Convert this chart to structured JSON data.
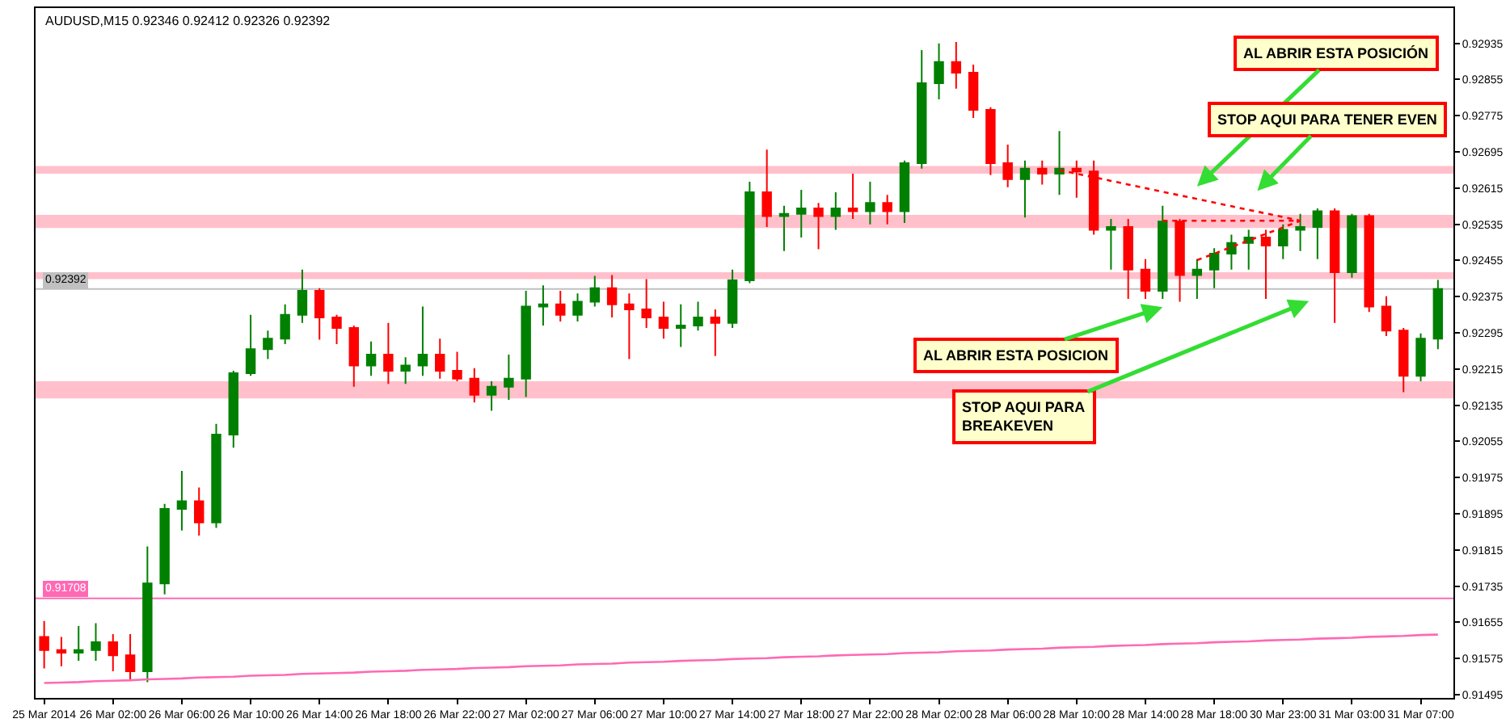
{
  "chart_data": {
    "type": "candlestick",
    "title": "AUDUSD,M15 0.92346 0.92412 0.92326 0.92392",
    "categories": [
      "25 Mar 2014",
      null,
      null,
      null,
      "26 Mar 02:00",
      null,
      null,
      null,
      "26 Mar 06:00",
      null,
      null,
      null,
      "26 Mar 10:00",
      null,
      null,
      null,
      "26 Mar 14:00",
      null,
      null,
      null,
      "26 Mar 18:00",
      null,
      null,
      null,
      "26 Mar 22:00",
      null,
      null,
      null,
      "27 Mar 02:00",
      null,
      null,
      null,
      "27 Mar 06:00",
      null,
      null,
      null,
      "27 Mar 10:00",
      null,
      null,
      null,
      "27 Mar 14:00",
      null,
      null,
      null,
      "27 Mar 18:00",
      null,
      null,
      null,
      "27 Mar 22:00",
      null,
      null,
      null,
      "28 Mar 02:00",
      null,
      null,
      null,
      "28 Mar 06:00",
      null,
      null,
      null,
      "28 Mar 10:00",
      null,
      null,
      null,
      "28 Mar 14:00",
      null,
      null,
      null,
      "28 Mar 18:00",
      null,
      null,
      null,
      "30 Mar 23:00",
      null,
      null,
      null,
      "31 Mar 03:00",
      null,
      null,
      null,
      "31 Mar 07:00",
      null
    ],
    "series": [
      {
        "type": "line",
        "color": "#ff69b4",
        "values": [
          0.91521,
          0.91522,
          0.91523,
          0.91525,
          0.91526,
          0.91527,
          0.91529,
          0.9153,
          0.91531,
          0.91533,
          0.91534,
          0.91535,
          0.91537,
          0.91538,
          0.91539,
          0.91541,
          0.91542,
          0.91543,
          0.91544,
          0.91546,
          0.91547,
          0.91548,
          0.9155,
          0.91551,
          0.91552,
          0.91554,
          0.91555,
          0.91556,
          0.91558,
          0.91559,
          0.9156,
          0.91562,
          0.91563,
          0.91564,
          0.91566,
          0.91567,
          0.91568,
          0.9157,
          0.91571,
          0.91572,
          0.91574,
          0.91575,
          0.91576,
          0.91578,
          0.91579,
          0.9158,
          0.91582,
          0.91583,
          0.91584,
          0.91585,
          0.91587,
          0.91588,
          0.91589,
          0.91591,
          0.91592,
          0.91593,
          0.91595,
          0.91596,
          0.91597,
          0.91599,
          0.916,
          0.91601,
          0.91603,
          0.91604,
          0.91605,
          0.91607,
          0.91608,
          0.91609,
          0.91611,
          0.91612,
          0.91613,
          0.91615,
          0.91616,
          0.91617,
          0.91619,
          0.9162,
          0.91621,
          0.91623,
          0.91624,
          0.91625,
          0.91627,
          0.91628
        ]
      },
      {
        "type": "line",
        "color": "#ff0000",
        "line_style": "dotted",
        "values": [
          null,
          null,
          null,
          null,
          null,
          null,
          null,
          null,
          null,
          null,
          null,
          null,
          null,
          null,
          null,
          null,
          null,
          null,
          null,
          null,
          null,
          null,
          null,
          null,
          null,
          null,
          null,
          null,
          null,
          null,
          null,
          null,
          null,
          null,
          null,
          null,
          null,
          null,
          null,
          null,
          null,
          null,
          null,
          null,
          null,
          null,
          null,
          null,
          null,
          null,
          null,
          null,
          null,
          null,
          null,
          null,
          null,
          null,
          null,
          0.92655,
          0.92647,
          0.92639,
          0.92631,
          0.92623,
          0.92615,
          0.92607,
          0.92599,
          0.92591,
          0.92583,
          0.92575,
          0.92567,
          0.92559,
          0.92551,
          0.92543,
          null,
          null,
          null,
          null,
          null,
          null,
          null,
          null
        ]
      },
      {
        "type": "line",
        "color": "#ff0000",
        "line_style": "dotted",
        "values": [
          null,
          null,
          null,
          null,
          null,
          null,
          null,
          null,
          null,
          null,
          null,
          null,
          null,
          null,
          null,
          null,
          null,
          null,
          null,
          null,
          null,
          null,
          null,
          null,
          null,
          null,
          null,
          null,
          null,
          null,
          null,
          null,
          null,
          null,
          null,
          null,
          null,
          null,
          null,
          null,
          null,
          null,
          null,
          null,
          null,
          null,
          null,
          null,
          null,
          null,
          null,
          null,
          null,
          null,
          null,
          null,
          null,
          null,
          null,
          null,
          null,
          null,
          null,
          null,
          null,
          0.92543,
          0.92543,
          0.92543,
          0.92543,
          0.92543,
          0.92543,
          0.92543,
          0.92543,
          0.92543,
          null,
          null,
          null,
          null,
          null,
          null,
          null,
          null
        ]
      },
      {
        "type": "line",
        "color": "#ff0000",
        "line_style": "dotted",
        "values": [
          null,
          null,
          null,
          null,
          null,
          null,
          null,
          null,
          null,
          null,
          null,
          null,
          null,
          null,
          null,
          null,
          null,
          null,
          null,
          null,
          null,
          null,
          null,
          null,
          null,
          null,
          null,
          null,
          null,
          null,
          null,
          null,
          null,
          null,
          null,
          null,
          null,
          null,
          null,
          null,
          null,
          null,
          null,
          null,
          null,
          null,
          null,
          null,
          null,
          null,
          null,
          null,
          null,
          null,
          null,
          null,
          null,
          null,
          null,
          null,
          null,
          null,
          null,
          null,
          null,
          null,
          null,
          0.92456,
          0.9247,
          0.92485,
          0.92499,
          0.92514,
          0.92528,
          0.92543,
          null,
          null,
          null,
          null,
          null,
          null,
          null,
          null
        ]
      },
      {
        "ohlc": [
          [
            0.91623,
            0.91658,
            0.91553,
            0.91594
          ],
          [
            0.91594,
            0.91623,
            0.91558,
            0.91588
          ],
          [
            0.91588,
            0.91647,
            0.9157,
            0.91594
          ],
          [
            0.91594,
            0.91653,
            0.9157,
            0.91611
          ],
          [
            0.91611,
            0.91629,
            0.91547,
            0.91582
          ],
          [
            0.91582,
            0.91629,
            0.91529,
            0.91547
          ],
          [
            0.91547,
            0.91823,
            0.91523,
            0.91741
          ],
          [
            0.91741,
            0.91917,
            0.91717,
            0.91906
          ],
          [
            0.91906,
            0.9199,
            0.91858,
            0.91923
          ],
          [
            0.91923,
            0.91953,
            0.91847,
            0.91876
          ],
          [
            0.91876,
            0.92094,
            0.91864,
            0.9207
          ],
          [
            0.9207,
            0.92211,
            0.92041,
            0.92206
          ],
          [
            0.92206,
            0.92335,
            0.922,
            0.92259
          ],
          [
            0.92259,
            0.923,
            0.92237,
            0.92282
          ],
          [
            0.92282,
            0.92358,
            0.9227,
            0.92335
          ],
          [
            0.92335,
            0.92435,
            0.92317,
            0.92388
          ],
          [
            0.92388,
            0.92394,
            0.9228,
            0.92329
          ],
          [
            0.92329,
            0.92335,
            0.9227,
            0.92306
          ],
          [
            0.92306,
            0.92311,
            0.92176,
            0.92223
          ],
          [
            0.92223,
            0.92276,
            0.922,
            0.92247
          ],
          [
            0.92247,
            0.92317,
            0.92182,
            0.92211
          ],
          [
            0.92211,
            0.92241,
            0.92182,
            0.92223
          ],
          [
            0.92223,
            0.92353,
            0.922,
            0.92247
          ],
          [
            0.92247,
            0.92282,
            0.92194,
            0.92211
          ],
          [
            0.92211,
            0.92253,
            0.92188,
            0.92194
          ],
          [
            0.92194,
            0.92217,
            0.92141,
            0.92158
          ],
          [
            0.92158,
            0.92188,
            0.92123,
            0.92176
          ],
          [
            0.92176,
            0.92247,
            0.92147,
            0.92194
          ],
          [
            0.92194,
            0.92388,
            0.92153,
            0.92353
          ],
          [
            0.92353,
            0.924,
            0.92311,
            0.92358
          ],
          [
            0.92358,
            0.92388,
            0.9232,
            0.92335
          ],
          [
            0.92335,
            0.92382,
            0.9232,
            0.92364
          ],
          [
            0.92364,
            0.92421,
            0.92353,
            0.92394
          ],
          [
            0.92394,
            0.92423,
            0.92329,
            0.92358
          ],
          [
            0.92358,
            0.92382,
            0.92237,
            0.92347
          ],
          [
            0.92347,
            0.92414,
            0.92306,
            0.92329
          ],
          [
            0.92329,
            0.92364,
            0.92282,
            0.92306
          ],
          [
            0.92306,
            0.92358,
            0.92264,
            0.92311
          ],
          [
            0.92311,
            0.92364,
            0.923,
            0.92329
          ],
          [
            0.92329,
            0.92347,
            0.92244,
            0.92317
          ],
          [
            0.92317,
            0.92435,
            0.92306,
            0.92411
          ],
          [
            0.92411,
            0.92629,
            0.92405,
            0.92606
          ],
          [
            0.92606,
            0.927,
            0.92529,
            0.92553
          ],
          [
            0.92553,
            0.92576,
            0.92476,
            0.92558
          ],
          [
            0.92558,
            0.92611,
            0.92506,
            0.9257
          ],
          [
            0.9257,
            0.92582,
            0.9248,
            0.92553
          ],
          [
            0.92553,
            0.92606,
            0.92523,
            0.9257
          ],
          [
            0.9257,
            0.92647,
            0.92547,
            0.92564
          ],
          [
            0.92564,
            0.92629,
            0.92535,
            0.92582
          ],
          [
            0.92582,
            0.926,
            0.92535,
            0.92564
          ],
          [
            0.92564,
            0.92676,
            0.92538,
            0.9267
          ],
          [
            0.9267,
            0.9292,
            0.92658,
            0.92847
          ],
          [
            0.92847,
            0.92935,
            0.92811,
            0.92894
          ],
          [
            0.92894,
            0.92938,
            0.92835,
            0.9287
          ],
          [
            0.9287,
            0.92888,
            0.9277,
            0.92788
          ],
          [
            0.92788,
            0.92794,
            0.92644,
            0.9267
          ],
          [
            0.9267,
            0.92711,
            0.92617,
            0.92635
          ],
          [
            0.92635,
            0.92676,
            0.9255,
            0.92658
          ],
          [
            0.92658,
            0.92676,
            0.92623,
            0.92647
          ],
          [
            0.92647,
            0.92741,
            0.926,
            0.92658
          ],
          [
            0.92658,
            0.92676,
            0.92594,
            0.92652
          ],
          [
            0.92652,
            0.92676,
            0.92512,
            0.92523
          ],
          [
            0.92523,
            0.92547,
            0.92435,
            0.92529
          ],
          [
            0.92529,
            0.92547,
            0.9237,
            0.92435
          ],
          [
            0.92435,
            0.92458,
            0.9237,
            0.92388
          ],
          [
            0.92388,
            0.92576,
            0.9237,
            0.92541
          ],
          [
            0.92541,
            0.92547,
            0.92364,
            0.92423
          ],
          [
            0.92423,
            0.92458,
            0.9237,
            0.92435
          ],
          [
            0.92435,
            0.92482,
            0.92394,
            0.9247
          ],
          [
            0.9247,
            0.92512,
            0.92435,
            0.92494
          ],
          [
            0.92494,
            0.92523,
            0.92435,
            0.92506
          ],
          [
            0.92506,
            0.92523,
            0.9237,
            0.92488
          ],
          [
            0.92488,
            0.92535,
            0.92458,
            0.92523
          ],
          [
            0.92523,
            0.92558,
            0.92476,
            0.92529
          ],
          [
            0.92529,
            0.9257,
            0.92458,
            0.92564
          ],
          [
            0.92564,
            0.9257,
            0.92317,
            0.92429
          ],
          [
            0.92429,
            0.92558,
            0.92417,
            0.92553
          ],
          [
            0.92553,
            0.92558,
            0.92341,
            0.92353
          ],
          [
            0.92353,
            0.92376,
            0.92288,
            0.923
          ],
          [
            0.923,
            0.92306,
            0.92164,
            0.922
          ],
          [
            0.922,
            0.92294,
            0.92188,
            0.92282
          ],
          [
            0.92282,
            0.92412,
            0.92259,
            0.92392
          ]
        ],
        "colors": [
          "#ff0000",
          "#ff0000",
          "#008000",
          "#008000",
          "#ff0000",
          "#ff0000",
          "#008000",
          "#008000",
          "#008000",
          "#ff0000",
          "#008000",
          "#008000",
          "#008000",
          "#008000",
          "#008000",
          "#008000",
          "#ff0000",
          "#ff0000",
          "#ff0000",
          "#008000",
          "#ff0000",
          "#008000",
          "#008000",
          "#ff0000",
          "#ff0000",
          "#ff0000",
          "#008000",
          "#008000",
          "#008000",
          "#008000",
          "#ff0000",
          "#008000",
          "#008000",
          "#ff0000",
          "#ff0000",
          "#ff0000",
          "#ff0000",
          "#008000",
          "#008000",
          "#ff0000",
          "#008000",
          "#008000",
          "#ff0000",
          "#008000",
          "#008000",
          "#ff0000",
          "#008000",
          "#ff0000",
          "#008000",
          "#ff0000",
          "#008000",
          "#008000",
          "#008000",
          "#ff0000",
          "#ff0000",
          "#ff0000",
          "#ff0000",
          "#008000",
          "#ff0000",
          "#008000",
          "#ff0000",
          "#ff0000",
          "#008000",
          "#ff0000",
          "#ff0000",
          "#008000",
          "#ff0000",
          "#008000",
          "#008000",
          "#008000",
          "#008000",
          "#ff0000",
          "#008000",
          "#008000",
          "#008000",
          "#ff0000",
          "#008000",
          "#ff0000",
          "#ff0000",
          "#ff0000",
          "#008000",
          "#008000"
        ]
      }
    ],
    "ylim": [
      0.91488,
      0.93013
    ],
    "yticks": [
      0.92935,
      0.92855,
      0.92775,
      0.92695,
      0.92615,
      0.92535,
      0.92455,
      0.92375,
      0.92295,
      0.92215,
      0.92135,
      0.92055,
      0.91975,
      0.91895,
      0.91815,
      0.91735,
      0.91655,
      0.91575,
      0.91495
    ],
    "ref_lines": [
      {
        "axis": "y",
        "value": 0.92392,
        "label": "0.92392",
        "color": "#c0c0c0"
      },
      {
        "axis": "y",
        "value": 0.91708,
        "label": "0.91708",
        "color": "#ff69b4"
      }
    ],
    "bands": [
      {
        "axis": "y",
        "from": 0.92647,
        "to": 0.92664,
        "color": "#ffc0cb"
      },
      {
        "axis": "y",
        "from": 0.92527,
        "to": 0.92556,
        "color": "#ffc0cb"
      },
      {
        "axis": "y",
        "from": 0.92414,
        "to": 0.92429,
        "color": "#ffc0cb"
      },
      {
        "axis": "y",
        "from": 0.9215,
        "to": 0.92188,
        "color": "#ffc0cb"
      }
    ],
    "annotations": [
      "AL ABRIR ESTA POSICIÓN",
      "STOP AQUI PARA TENER EVEN",
      "AL ABRIR ESTA POSICION",
      "STOP AQUI PARA\nBREAKEVEN"
    ]
  }
}
